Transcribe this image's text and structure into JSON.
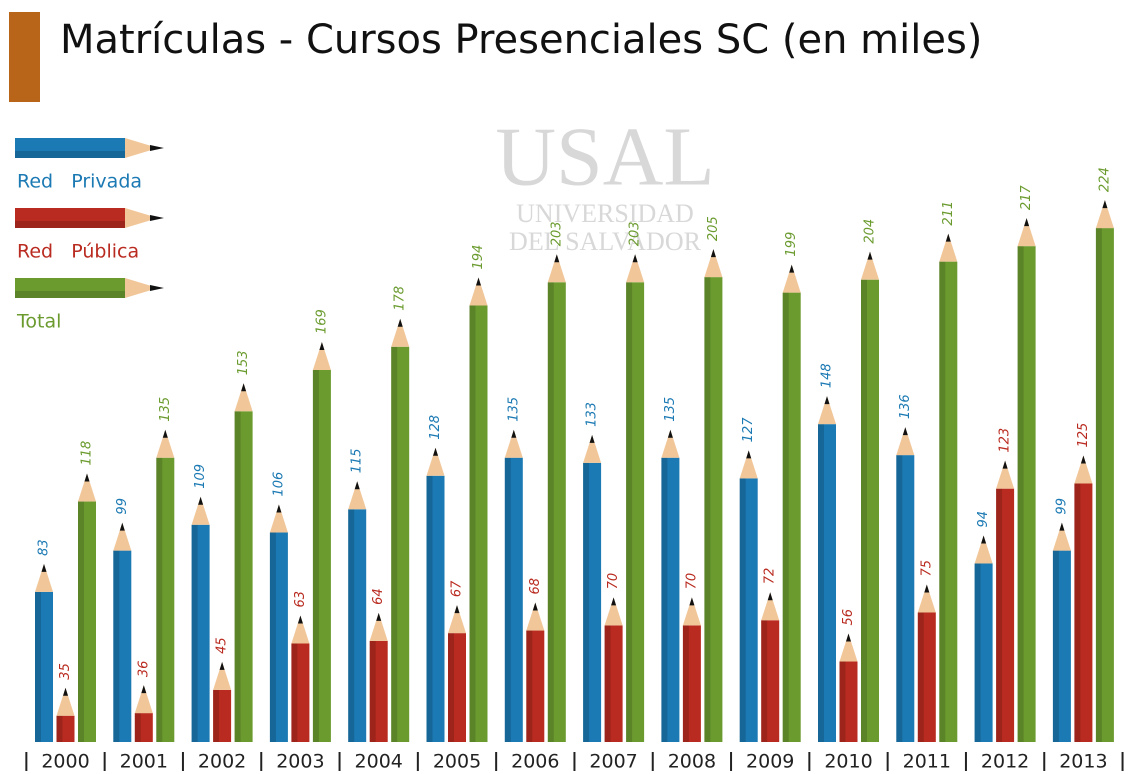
{
  "chart_data": {
    "type": "bar",
    "title": "Matrículas - Cursos Presenciales  SC (en miles)",
    "watermark": [
      "USAL",
      "UNIVERSIDAD",
      "DEL SALVADOR"
    ],
    "categories": [
      "2000",
      "2001",
      "2002",
      "2003",
      "2004",
      "2005",
      "2006",
      "2007",
      "2008",
      "2009",
      "2010",
      "2011",
      "2012",
      "2013"
    ],
    "series": [
      {
        "name": "Red   Privada",
        "color": "#1b79b3",
        "values": [
          83,
          99,
          109,
          106,
          115,
          128,
          135,
          133,
          135,
          127,
          148,
          136,
          94,
          99
        ]
      },
      {
        "name": "Red   Pública",
        "color": "#b92b20",
        "values": [
          35,
          36,
          45,
          63,
          64,
          67,
          68,
          70,
          70,
          72,
          56,
          75,
          123,
          125
        ]
      },
      {
        "name": "Total",
        "color": "#6b9b2f",
        "values": [
          118,
          135,
          153,
          169,
          178,
          194,
          203,
          203,
          205,
          199,
          204,
          211,
          217,
          224
        ]
      }
    ]
  }
}
